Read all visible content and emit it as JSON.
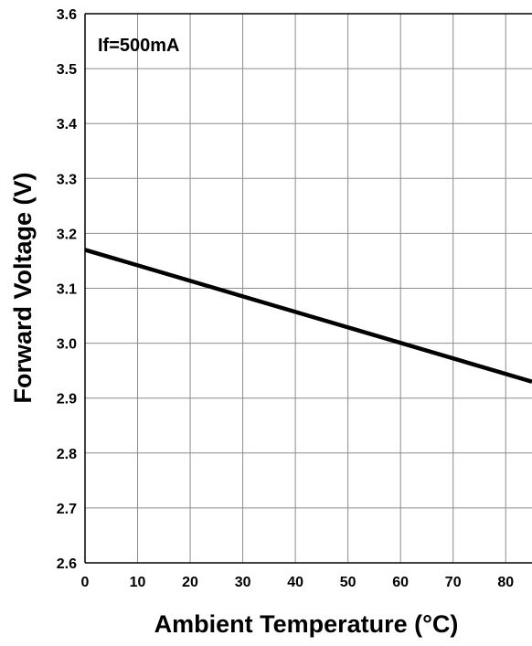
{
  "chart_data": {
    "type": "line",
    "xlabel": "Ambient Temperature (°C)",
    "ylabel": "Forward Voltage (V)",
    "annotation": "If=500mA",
    "x_ticks": [
      "0",
      "10",
      "20",
      "30",
      "40",
      "50",
      "60",
      "70",
      "80"
    ],
    "y_ticks": [
      "2.6",
      "2.7",
      "2.8",
      "2.9",
      "3.0",
      "3.1",
      "3.2",
      "3.3",
      "3.4",
      "3.5",
      "3.6"
    ],
    "xlim": [
      0,
      85
    ],
    "ylim": [
      2.6,
      3.6
    ],
    "grid": true,
    "series": [
      {
        "x": [
          0,
          85
        ],
        "y": [
          3.17,
          2.93
        ]
      }
    ],
    "colors": {
      "line": "#000000",
      "grid": "#8c8c8c",
      "axis": "#000000"
    }
  }
}
